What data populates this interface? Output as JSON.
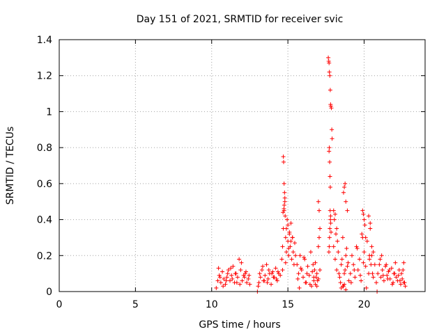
{
  "chart_data": {
    "type": "scatter",
    "title": "Day 151 of 2021, SRMTID for receiver svic",
    "xlabel": "GPS time / hours",
    "ylabel": "SRMTID / TECUs",
    "xlim": [
      0,
      24
    ],
    "ylim": [
      0,
      1.4
    ],
    "xticks": [
      0,
      5,
      10,
      15,
      20
    ],
    "xtick_labels": [
      "0",
      "5",
      "10",
      "15",
      "20"
    ],
    "yticks": [
      0,
      0.2,
      0.4,
      0.6,
      0.8,
      1.0,
      1.2,
      1.4
    ],
    "ytick_labels": [
      "0",
      "0.2",
      "0.4",
      "0.6",
      "0.8",
      "1",
      "1.2",
      "1.4"
    ],
    "grid": true,
    "marker": "plus",
    "series": [
      {
        "name": "SRMTID",
        "color": "#ff0000",
        "x": [
          10.3,
          10.4,
          10.5,
          10.6,
          10.7,
          10.8,
          10.9,
          11.0,
          11.1,
          11.2,
          11.3,
          11.4,
          11.5,
          11.6,
          11.7,
          11.8,
          11.9,
          12.0,
          12.1,
          12.2,
          12.3,
          12.4,
          12.5,
          10.45,
          10.75,
          11.05,
          11.35,
          11.65,
          11.95,
          12.25,
          10.55,
          10.95,
          11.25,
          11.55,
          11.85,
          12.15,
          12.45,
          13.0,
          13.1,
          13.2,
          13.3,
          13.4,
          13.5,
          13.6,
          13.7,
          13.8,
          13.9,
          14.0,
          14.1,
          14.2,
          14.3,
          14.4,
          14.5,
          13.05,
          13.35,
          13.65,
          13.95,
          14.25,
          13.15,
          13.45,
          13.75,
          14.05,
          14.35,
          14.6,
          14.65,
          14.7,
          14.75,
          14.8,
          14.85,
          14.9,
          14.95,
          15.0,
          15.05,
          15.1,
          15.15,
          15.2,
          15.25,
          15.3,
          15.35,
          15.4,
          15.45,
          15.5,
          14.7,
          14.72,
          14.75,
          14.78,
          14.8,
          14.76,
          14.74,
          14.82,
          14.68,
          14.9,
          15.0,
          15.1,
          14.65,
          14.85,
          15.05,
          15.2,
          15.3,
          15.6,
          15.7,
          15.8,
          15.9,
          16.0,
          16.1,
          16.2,
          16.3,
          16.4,
          16.5,
          16.6,
          16.7,
          16.8,
          16.9,
          17.0,
          17.1,
          15.65,
          15.85,
          16.05,
          16.25,
          16.45,
          16.65,
          16.85,
          17.05,
          15.75,
          16.15,
          16.55,
          16.95,
          16.7,
          16.75,
          16.8,
          17.0,
          17.05,
          17.1,
          16.9,
          17.0,
          17.65,
          17.68,
          17.7,
          17.72,
          17.75,
          17.78,
          17.8,
          17.82,
          17.85,
          17.88,
          17.9,
          17.7,
          17.72,
          17.74,
          17.76,
          17.78,
          17.8,
          17.75,
          17.73,
          17.71,
          17.69,
          17.77,
          17.79,
          17.81,
          17.83,
          18.0,
          18.1,
          18.2,
          18.3,
          18.4,
          18.5,
          18.6,
          18.7,
          18.8,
          18.9,
          19.0,
          18.05,
          18.15,
          18.25,
          18.35,
          18.45,
          18.55,
          18.65,
          18.75,
          18.85,
          18.95,
          18.0,
          18.1,
          18.2,
          18.5,
          18.6,
          18.7,
          18.8,
          18.75,
          18.7,
          18.65,
          18.8,
          18.9,
          19.1,
          19.2,
          19.3,
          19.4,
          19.5,
          19.6,
          19.7,
          19.8,
          19.9,
          20.0,
          20.1,
          20.2,
          20.3,
          20.4,
          20.5,
          20.6,
          20.7,
          19.15,
          19.35,
          19.55,
          19.75,
          19.95,
          20.15,
          20.35,
          20.55,
          19.9,
          19.95,
          20.0,
          20.05,
          19.85,
          20.1,
          20.3,
          20.4,
          20.5,
          20.6,
          20.35,
          20.45,
          20.8,
          20.9,
          21.0,
          21.1,
          21.2,
          21.3,
          21.4,
          21.5,
          21.6,
          21.7,
          21.8,
          21.9,
          22.0,
          22.1,
          22.2,
          22.3,
          22.4,
          22.5,
          22.6,
          22.7,
          20.85,
          21.05,
          21.25,
          21.45,
          21.65,
          21.85,
          22.05,
          22.25,
          22.45,
          22.65,
          21.15,
          21.55,
          21.95,
          22.35,
          22.55,
          22.6
        ],
        "y": [
          0.02,
          0.06,
          0.09,
          0.05,
          0.11,
          0.07,
          0.04,
          0.08,
          0.12,
          0.06,
          0.09,
          0.14,
          0.05,
          0.1,
          0.08,
          0.18,
          0.12,
          0.06,
          0.09,
          0.1,
          0.05,
          0.07,
          0.04,
          0.13,
          0.03,
          0.1,
          0.07,
          0.05,
          0.16,
          0.11,
          0.08,
          0.06,
          0.13,
          0.1,
          0.04,
          0.08,
          0.09,
          0.0,
          0.05,
          0.08,
          0.12,
          0.06,
          0.09,
          0.15,
          0.07,
          0.1,
          0.04,
          0.11,
          0.08,
          0.13,
          0.06,
          0.1,
          0.09,
          0.03,
          0.14,
          0.05,
          0.1,
          0.07,
          0.1,
          0.06,
          0.12,
          0.08,
          0.11,
          0.18,
          0.25,
          0.35,
          0.45,
          0.5,
          0.3,
          0.22,
          0.4,
          0.28,
          0.2,
          0.33,
          0.25,
          0.38,
          0.18,
          0.3,
          0.22,
          0.15,
          0.27,
          0.2,
          0.75,
          0.72,
          0.6,
          0.55,
          0.52,
          0.48,
          0.46,
          0.42,
          0.44,
          0.35,
          0.37,
          0.32,
          0.12,
          0.16,
          0.24,
          0.28,
          0.3,
          0.15,
          0.1,
          0.2,
          0.12,
          0.08,
          0.18,
          0.05,
          0.14,
          0.09,
          0.22,
          0.11,
          0.06,
          0.16,
          0.1,
          0.25,
          0.12,
          0.07,
          0.13,
          0.19,
          0.1,
          0.04,
          0.15,
          0.08,
          0.3,
          0.02,
          0.05,
          0.03,
          0.06,
          0.08,
          0.12,
          0.04,
          0.5,
          0.45,
          0.35,
          0.03,
          0.07,
          1.3,
          1.28,
          1.27,
          1.22,
          1.2,
          1.12,
          1.04,
          1.03,
          1.02,
          0.9,
          0.85,
          0.78,
          0.8,
          0.72,
          0.64,
          0.58,
          0.42,
          0.35,
          0.3,
          0.25,
          0.22,
          0.45,
          0.4,
          0.38,
          0.33,
          0.25,
          0.18,
          0.12,
          0.22,
          0.08,
          0.15,
          0.3,
          0.1,
          0.2,
          0.14,
          0.06,
          0.4,
          0.32,
          0.28,
          0.1,
          0.05,
          0.18,
          0.03,
          0.12,
          0.24,
          0.16,
          0.45,
          0.43,
          0.35,
          0.02,
          0.03,
          0.04,
          0.01,
          0.6,
          0.58,
          0.55,
          0.5,
          0.45,
          0.1,
          0.2,
          0.15,
          0.08,
          0.25,
          0.12,
          0.18,
          0.06,
          0.3,
          0.22,
          0.14,
          0.28,
          0.1,
          0.35,
          0.2,
          0.08,
          0.15,
          0.05,
          0.12,
          0.24,
          0.09,
          0.16,
          0.02,
          0.18,
          0.1,
          0.45,
          0.43,
          0.4,
          0.37,
          0.32,
          0.3,
          0.42,
          0.38,
          0.25,
          0.22,
          0.2,
          0.15,
          0.05,
          0.1,
          0.15,
          0.08,
          0.12,
          0.06,
          0.14,
          0.09,
          0.11,
          0.07,
          0.13,
          0.05,
          0.1,
          0.08,
          0.06,
          0.12,
          0.04,
          0.07,
          0.05,
          0.03,
          0.0,
          0.18,
          0.09,
          0.15,
          0.12,
          0.04,
          0.16,
          0.09,
          0.1,
          0.05,
          0.2,
          0.07,
          0.1,
          0.06,
          0.12,
          0.16
        ]
      }
    ]
  }
}
